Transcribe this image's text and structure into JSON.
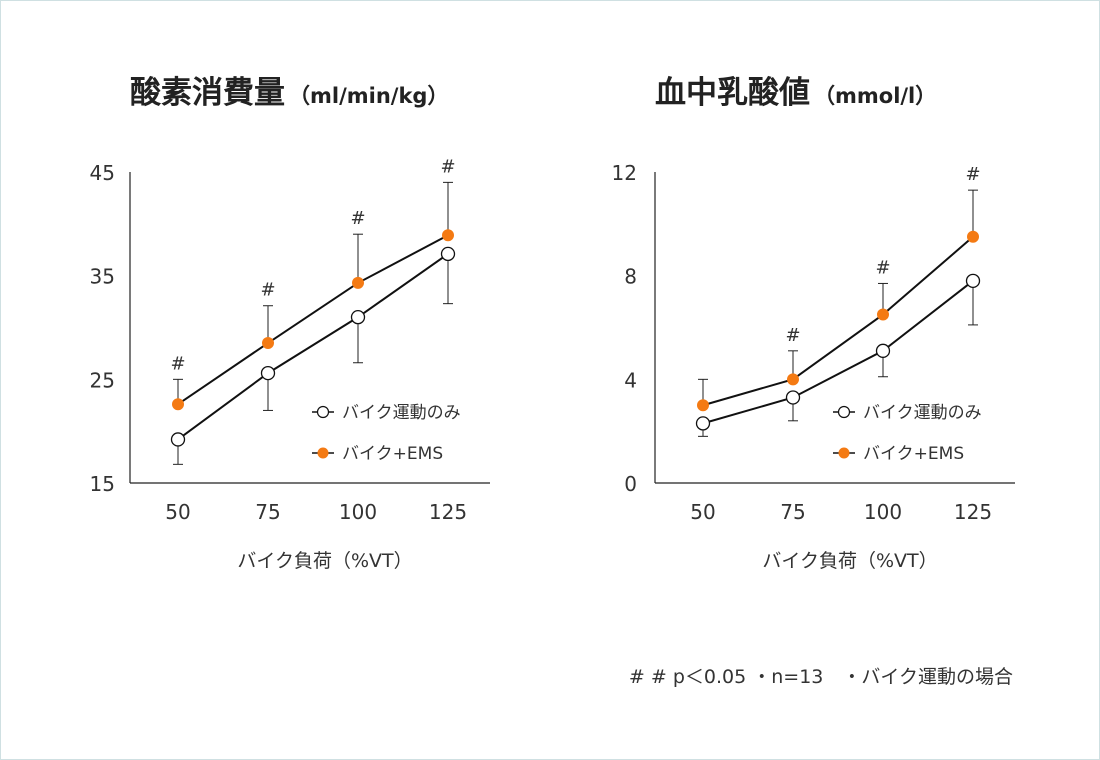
{
  "footnote": "# # p＜0.05 ・n=13　・バイク運動の場合",
  "colors": {
    "ems": "#f47a13",
    "bike": "#ffffff",
    "line": "#111111"
  },
  "chart_data": [
    {
      "type": "line",
      "title": "酸素消費量",
      "unit": "（ml/min/kg）",
      "xlabel": "バイク負荷（%VT）",
      "ylabel": "",
      "x": [
        50,
        75,
        100,
        125
      ],
      "ylim": [
        15,
        45
      ],
      "yticks": [
        15,
        25,
        35,
        45
      ],
      "series": [
        {
          "name": "バイク運動のみ",
          "values": [
            19.2,
            25.6,
            31.0,
            37.1
          ],
          "err_low": [
            16.8,
            22.0,
            26.6,
            32.3
          ],
          "err_high": [
            null,
            null,
            null,
            null
          ]
        },
        {
          "name": "バイク+EMS",
          "values": [
            22.6,
            28.5,
            34.3,
            38.9
          ],
          "err_low": [
            null,
            null,
            null,
            null
          ],
          "err_high": [
            25.0,
            32.1,
            39.0,
            44.0
          ]
        }
      ],
      "significance": [
        "#",
        "#",
        "#",
        "#"
      ]
    },
    {
      "type": "line",
      "title": "血中乳酸値",
      "unit": "（mmol/l）",
      "xlabel": "バイク負荷（%VT）",
      "ylabel": "",
      "x": [
        50,
        75,
        100,
        125
      ],
      "ylim": [
        0,
        12
      ],
      "yticks": [
        0,
        4,
        8,
        12
      ],
      "series": [
        {
          "name": "バイク運動のみ",
          "values": [
            2.3,
            3.3,
            5.1,
            7.8
          ],
          "err_low": [
            1.8,
            2.4,
            4.1,
            6.1
          ],
          "err_high": [
            null,
            null,
            null,
            null
          ]
        },
        {
          "name": "バイク+EMS",
          "values": [
            3.0,
            4.0,
            6.5,
            9.5
          ],
          "err_low": [
            null,
            null,
            null,
            null
          ],
          "err_high": [
            4.0,
            5.1,
            7.7,
            11.3
          ]
        }
      ],
      "significance": [
        "",
        "#",
        "#",
        "#"
      ]
    }
  ]
}
